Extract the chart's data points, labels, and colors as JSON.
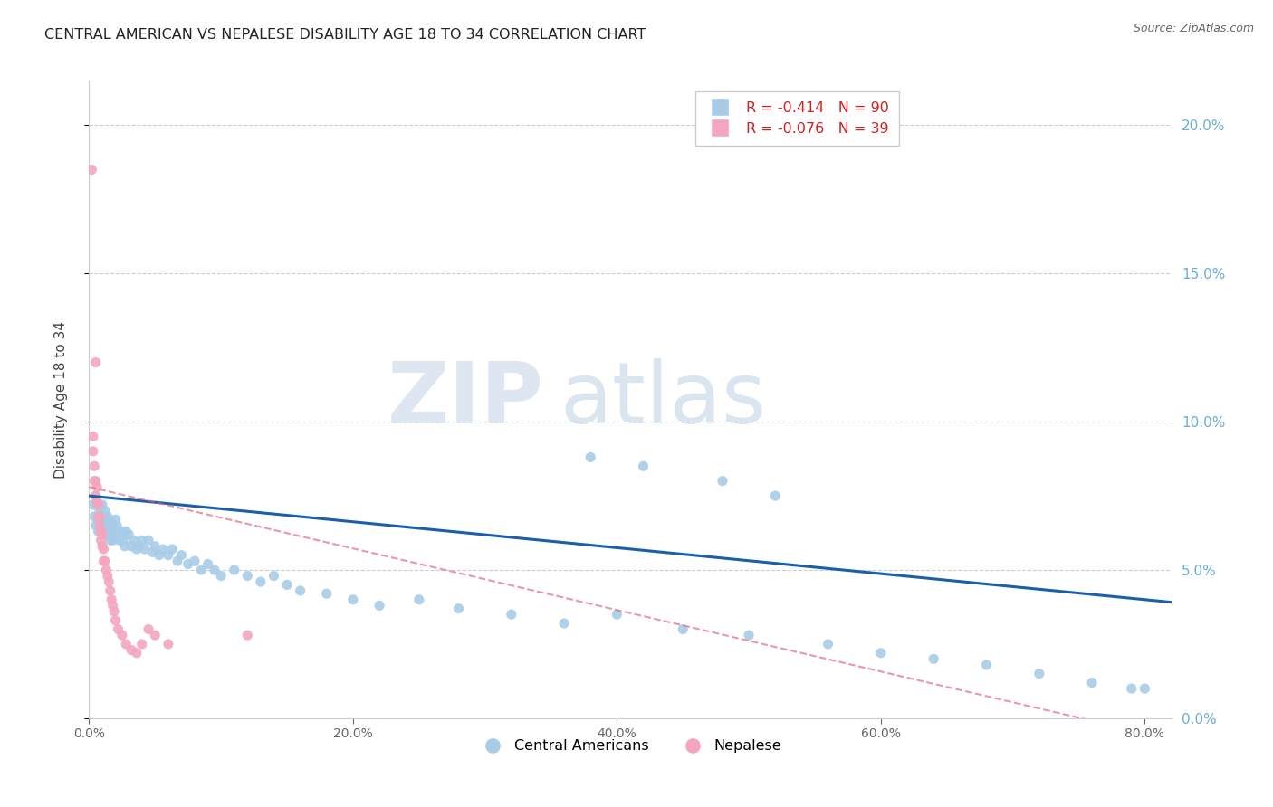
{
  "title": "CENTRAL AMERICAN VS NEPALESE DISABILITY AGE 18 TO 34 CORRELATION CHART",
  "source": "Source: ZipAtlas.com",
  "ylabel": "Disability Age 18 to 34",
  "xlim": [
    0.0,
    0.82
  ],
  "ylim": [
    0.0,
    0.215
  ],
  "yticks": [
    0.0,
    0.05,
    0.1,
    0.15,
    0.2
  ],
  "xticks": [
    0.0,
    0.2,
    0.4,
    0.6,
    0.8
  ],
  "central_american_R": -0.414,
  "central_american_N": 90,
  "nepalese_R": -0.076,
  "nepalese_N": 39,
  "blue_color": "#a8cce8",
  "pink_color": "#f4a6be",
  "blue_line_color": "#1a5fa8",
  "pink_line_color": "#e06080",
  "axis_label_color": "#6baed6",
  "background_color": "#ffffff",
  "grid_color": "#cccccc",
  "ca_x": [
    0.003,
    0.004,
    0.005,
    0.005,
    0.006,
    0.007,
    0.007,
    0.008,
    0.008,
    0.009,
    0.009,
    0.01,
    0.01,
    0.011,
    0.011,
    0.012,
    0.012,
    0.013,
    0.013,
    0.014,
    0.014,
    0.015,
    0.015,
    0.016,
    0.016,
    0.017,
    0.017,
    0.018,
    0.018,
    0.019,
    0.02,
    0.02,
    0.021,
    0.022,
    0.023,
    0.024,
    0.025,
    0.026,
    0.027,
    0.028,
    0.03,
    0.032,
    0.034,
    0.036,
    0.038,
    0.04,
    0.042,
    0.045,
    0.048,
    0.05,
    0.053,
    0.056,
    0.06,
    0.063,
    0.067,
    0.07,
    0.075,
    0.08,
    0.085,
    0.09,
    0.095,
    0.1,
    0.11,
    0.12,
    0.13,
    0.14,
    0.15,
    0.16,
    0.18,
    0.2,
    0.22,
    0.25,
    0.28,
    0.32,
    0.36,
    0.4,
    0.45,
    0.5,
    0.56,
    0.6,
    0.64,
    0.68,
    0.72,
    0.76,
    0.79,
    0.8,
    0.38,
    0.42,
    0.48,
    0.52
  ],
  "ca_y": [
    0.072,
    0.068,
    0.075,
    0.065,
    0.072,
    0.068,
    0.063,
    0.07,
    0.065,
    0.068,
    0.063,
    0.072,
    0.065,
    0.068,
    0.063,
    0.07,
    0.065,
    0.067,
    0.062,
    0.068,
    0.063,
    0.066,
    0.062,
    0.065,
    0.06,
    0.066,
    0.062,
    0.065,
    0.06,
    0.063,
    0.067,
    0.063,
    0.065,
    0.062,
    0.06,
    0.063,
    0.062,
    0.06,
    0.058,
    0.063,
    0.062,
    0.058,
    0.06,
    0.057,
    0.058,
    0.06,
    0.057,
    0.06,
    0.056,
    0.058,
    0.055,
    0.057,
    0.055,
    0.057,
    0.053,
    0.055,
    0.052,
    0.053,
    0.05,
    0.052,
    0.05,
    0.048,
    0.05,
    0.048,
    0.046,
    0.048,
    0.045,
    0.043,
    0.042,
    0.04,
    0.038,
    0.04,
    0.037,
    0.035,
    0.032,
    0.035,
    0.03,
    0.028,
    0.025,
    0.022,
    0.02,
    0.018,
    0.015,
    0.012,
    0.01,
    0.01,
    0.088,
    0.085,
    0.08,
    0.075
  ],
  "np_x": [
    0.002,
    0.003,
    0.003,
    0.004,
    0.004,
    0.005,
    0.005,
    0.006,
    0.006,
    0.007,
    0.007,
    0.008,
    0.008,
    0.009,
    0.009,
    0.01,
    0.01,
    0.011,
    0.011,
    0.012,
    0.013,
    0.014,
    0.015,
    0.016,
    0.017,
    0.018,
    0.019,
    0.02,
    0.022,
    0.025,
    0.028,
    0.032,
    0.036,
    0.04,
    0.045,
    0.05,
    0.06,
    0.12,
    0.005
  ],
  "np_y": [
    0.185,
    0.095,
    0.09,
    0.085,
    0.08,
    0.08,
    0.075,
    0.078,
    0.073,
    0.072,
    0.068,
    0.068,
    0.065,
    0.063,
    0.06,
    0.062,
    0.058,
    0.057,
    0.053,
    0.053,
    0.05,
    0.048,
    0.046,
    0.043,
    0.04,
    0.038,
    0.036,
    0.033,
    0.03,
    0.028,
    0.025,
    0.023,
    0.022,
    0.025,
    0.03,
    0.028,
    0.025,
    0.028,
    0.12
  ]
}
